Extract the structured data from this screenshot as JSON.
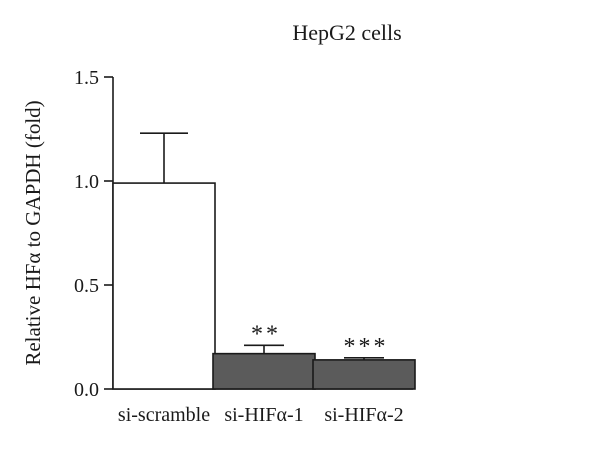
{
  "chart_data": {
    "type": "bar",
    "title": "HepG2 cells",
    "ylabel": "Relative HFα to GAPDH (fold)",
    "xlabel": "",
    "ylim": [
      0,
      1.5
    ],
    "yticks": [
      "0.0",
      "0.5",
      "1.0",
      "1.5"
    ],
    "categories": [
      "si-scramble",
      "si-HIFα-1",
      "si-HIFα-2"
    ],
    "values": [
      0.99,
      0.17,
      0.14
    ],
    "error_upper": [
      0.24,
      0.04,
      0.01
    ],
    "significance": [
      "",
      "**",
      "***"
    ],
    "bar_colors": [
      "#ffffff",
      "#5b5b5b",
      "#5b5b5b"
    ],
    "grid": false,
    "legend": "none"
  }
}
